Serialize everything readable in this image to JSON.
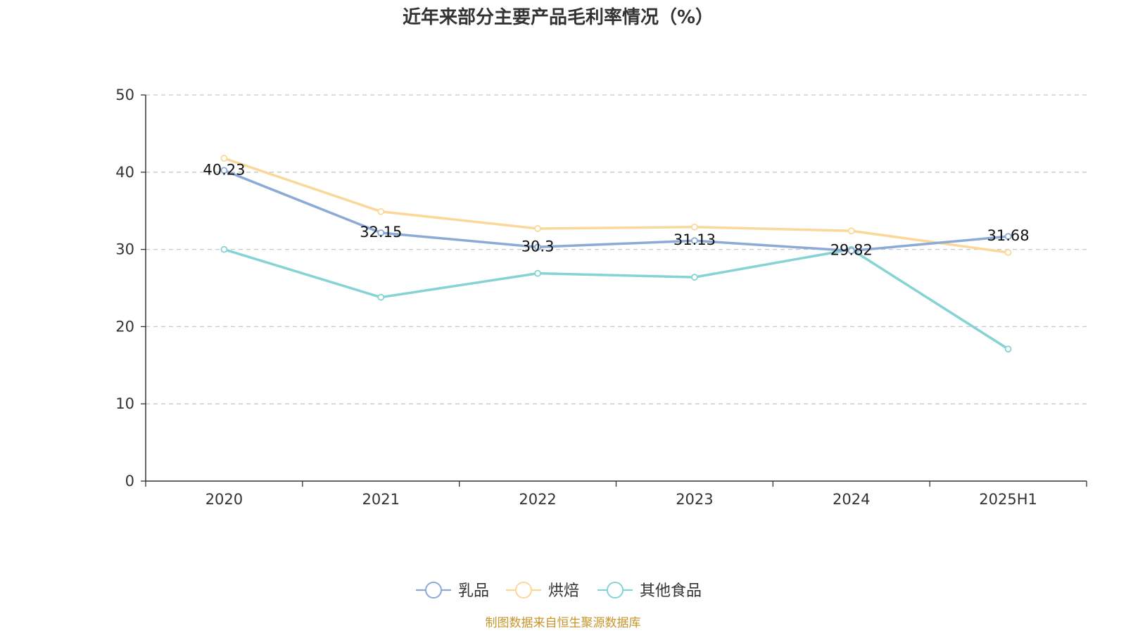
{
  "chart_data": {
    "type": "line",
    "title": "近年来部分主要产品毛利率情况（%）",
    "categories": [
      "2020",
      "2021",
      "2022",
      "2023",
      "2024",
      "2025H1"
    ],
    "ylim": [
      0,
      50
    ],
    "yticks": [
      "0",
      "10",
      "20",
      "30",
      "40",
      "50"
    ],
    "grid": true,
    "legend_position": "bottom-center",
    "series": [
      {
        "name": "乳品",
        "color": "#8caad6",
        "values": [
          40.23,
          32.15,
          30.3,
          31.13,
          29.82,
          31.68
        ],
        "labels": [
          "40.23",
          "32.15",
          "30.3",
          "31.13",
          "29.82",
          "31.68"
        ]
      },
      {
        "name": "烘焙",
        "color": "#fbd89a",
        "values": [
          41.8,
          34.9,
          32.7,
          32.9,
          32.4,
          29.6
        ]
      },
      {
        "name": "其他食品",
        "color": "#85d3d5",
        "values": [
          30.0,
          23.8,
          26.9,
          26.4,
          30.0,
          17.1
        ]
      }
    ],
    "source": "制图数据来自恒生聚源数据库"
  }
}
